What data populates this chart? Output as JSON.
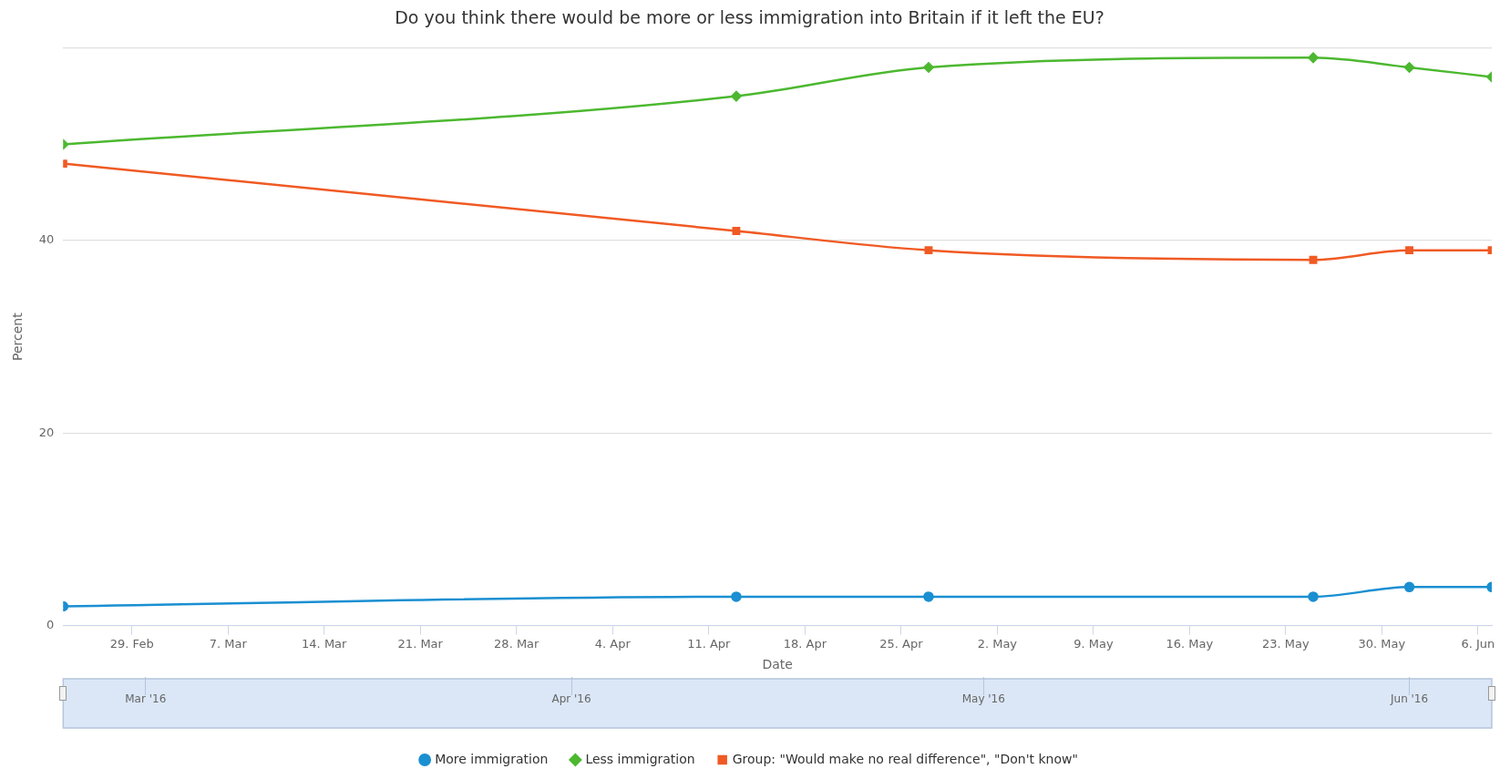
{
  "chart_data": {
    "type": "line",
    "title": "Do you think there would be more or less immigration into Britain if it left the EU?",
    "xlabel": "Date",
    "ylabel": "Percent",
    "x": [
      "2016-02-24",
      "2016-04-13",
      "2016-04-27",
      "2016-05-25",
      "2016-06-01",
      "2016-06-07"
    ],
    "series": [
      {
        "name": "More immigration",
        "color": "#1a8fd1",
        "marker": "circle",
        "values": [
          2,
          3,
          3,
          3,
          4,
          4
        ]
      },
      {
        "name": "Less immigration",
        "color": "#4cb830",
        "marker": "diamond",
        "values": [
          50,
          55,
          58,
          59,
          58,
          57
        ]
      },
      {
        "name": "Group: \"Would make no real difference\", \"Don't know\"",
        "color": "#f05a24",
        "marker": "square",
        "values": [
          48,
          41,
          39,
          38,
          39,
          39
        ]
      }
    ],
    "xlim": [
      "2016-02-24",
      "2016-06-07"
    ],
    "xticks": [
      {
        "value": "2016-02-29",
        "label": "29. Feb"
      },
      {
        "value": "2016-03-07",
        "label": "7. Mar"
      },
      {
        "value": "2016-03-14",
        "label": "14. Mar"
      },
      {
        "value": "2016-03-21",
        "label": "21. Mar"
      },
      {
        "value": "2016-03-28",
        "label": "28. Mar"
      },
      {
        "value": "2016-04-04",
        "label": "4. Apr"
      },
      {
        "value": "2016-04-11",
        "label": "11. Apr"
      },
      {
        "value": "2016-04-18",
        "label": "18. Apr"
      },
      {
        "value": "2016-04-25",
        "label": "25. Apr"
      },
      {
        "value": "2016-05-02",
        "label": "2. May"
      },
      {
        "value": "2016-05-09",
        "label": "9. May"
      },
      {
        "value": "2016-05-16",
        "label": "16. May"
      },
      {
        "value": "2016-05-23",
        "label": "23. May"
      },
      {
        "value": "2016-05-30",
        "label": "30. May"
      },
      {
        "value": "2016-06-06",
        "label": "6. Jun"
      }
    ],
    "x2lim": [
      "2016-02-24",
      "2016-06-07"
    ],
    "x2ticks": [
      {
        "value": "2016-03-01",
        "label": "Mar '16"
      },
      {
        "value": "2016-04-01",
        "label": "Apr '16"
      },
      {
        "value": "2016-05-01",
        "label": "May '16"
      },
      {
        "value": "2016-06-01",
        "label": "Jun '16"
      }
    ],
    "ylim": [
      0,
      60
    ],
    "yticks": [
      0,
      20,
      40,
      {
        "value": 60,
        "label": null
      }
    ],
    "grid": "y",
    "legend": "bottom",
    "line_style": "solid"
  }
}
